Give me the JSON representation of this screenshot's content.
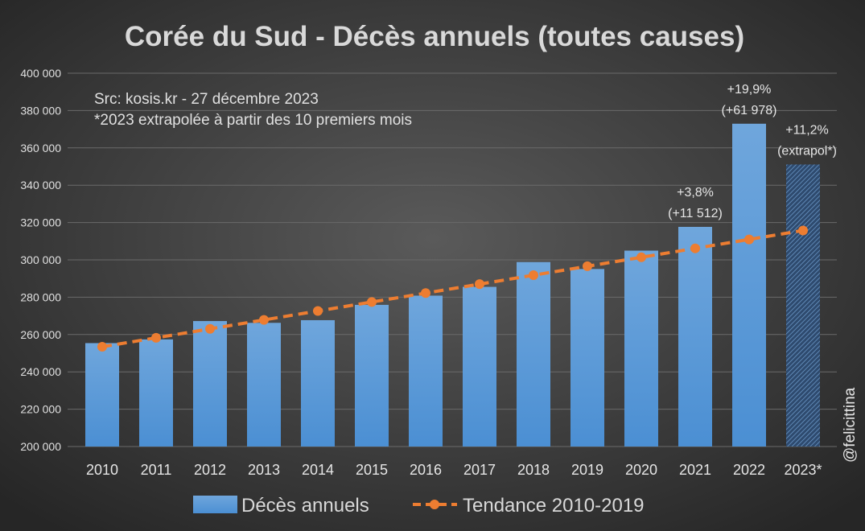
{
  "chart_data": {
    "type": "bar",
    "title": "Corée du Sud - Décès annuels (toutes causes)",
    "notes": [
      "Src: kosis.kr - 27 décembre 2023",
      "*2023 extrapolée à partir des 10 premiers mois"
    ],
    "watermark": "@felicittina",
    "categories": [
      "2010",
      "2011",
      "2012",
      "2013",
      "2014",
      "2015",
      "2016",
      "2017",
      "2018",
      "2019",
      "2020",
      "2021",
      "2022",
      "2023*"
    ],
    "series": [
      {
        "name": "Décès annuels",
        "type": "bar",
        "color": "#5b9bd5",
        "values": [
          255405,
          257396,
          267221,
          266257,
          267692,
          275895,
          280827,
          285534,
          298820,
          295110,
          304948,
          317680,
          372939,
          351100
        ],
        "extrapolated_last": true
      },
      {
        "name": "Tendance 2010-2019",
        "type": "line",
        "style": "dashed",
        "marker": "circle",
        "color": "#ed7d31",
        "values": [
          253445,
          258238,
          263031,
          267824,
          272617,
          277410,
          282203,
          286996,
          291789,
          296582,
          301375,
          306168,
          310961,
          315754
        ]
      }
    ],
    "annotations": [
      {
        "category": "2021",
        "lines": [
          "+3,8%",
          "(+11 512)"
        ]
      },
      {
        "category": "2022",
        "lines": [
          "+19,9%",
          "(+61 978)"
        ]
      },
      {
        "category": "2023*",
        "lines": [
          "+11,2%",
          "(extrapol*)"
        ]
      }
    ],
    "ylim": [
      200000,
      400000
    ],
    "yticks": [
      200000,
      220000,
      240000,
      260000,
      280000,
      300000,
      320000,
      340000,
      360000,
      380000,
      400000
    ],
    "ytick_labels": [
      "200 000",
      "220 000",
      "240 000",
      "260 000",
      "280 000",
      "300 000",
      "320 000",
      "340 000",
      "360 000",
      "380 000",
      "400 000"
    ],
    "grid": true,
    "legend_position": "bottom",
    "background": "#3a3a3a"
  }
}
